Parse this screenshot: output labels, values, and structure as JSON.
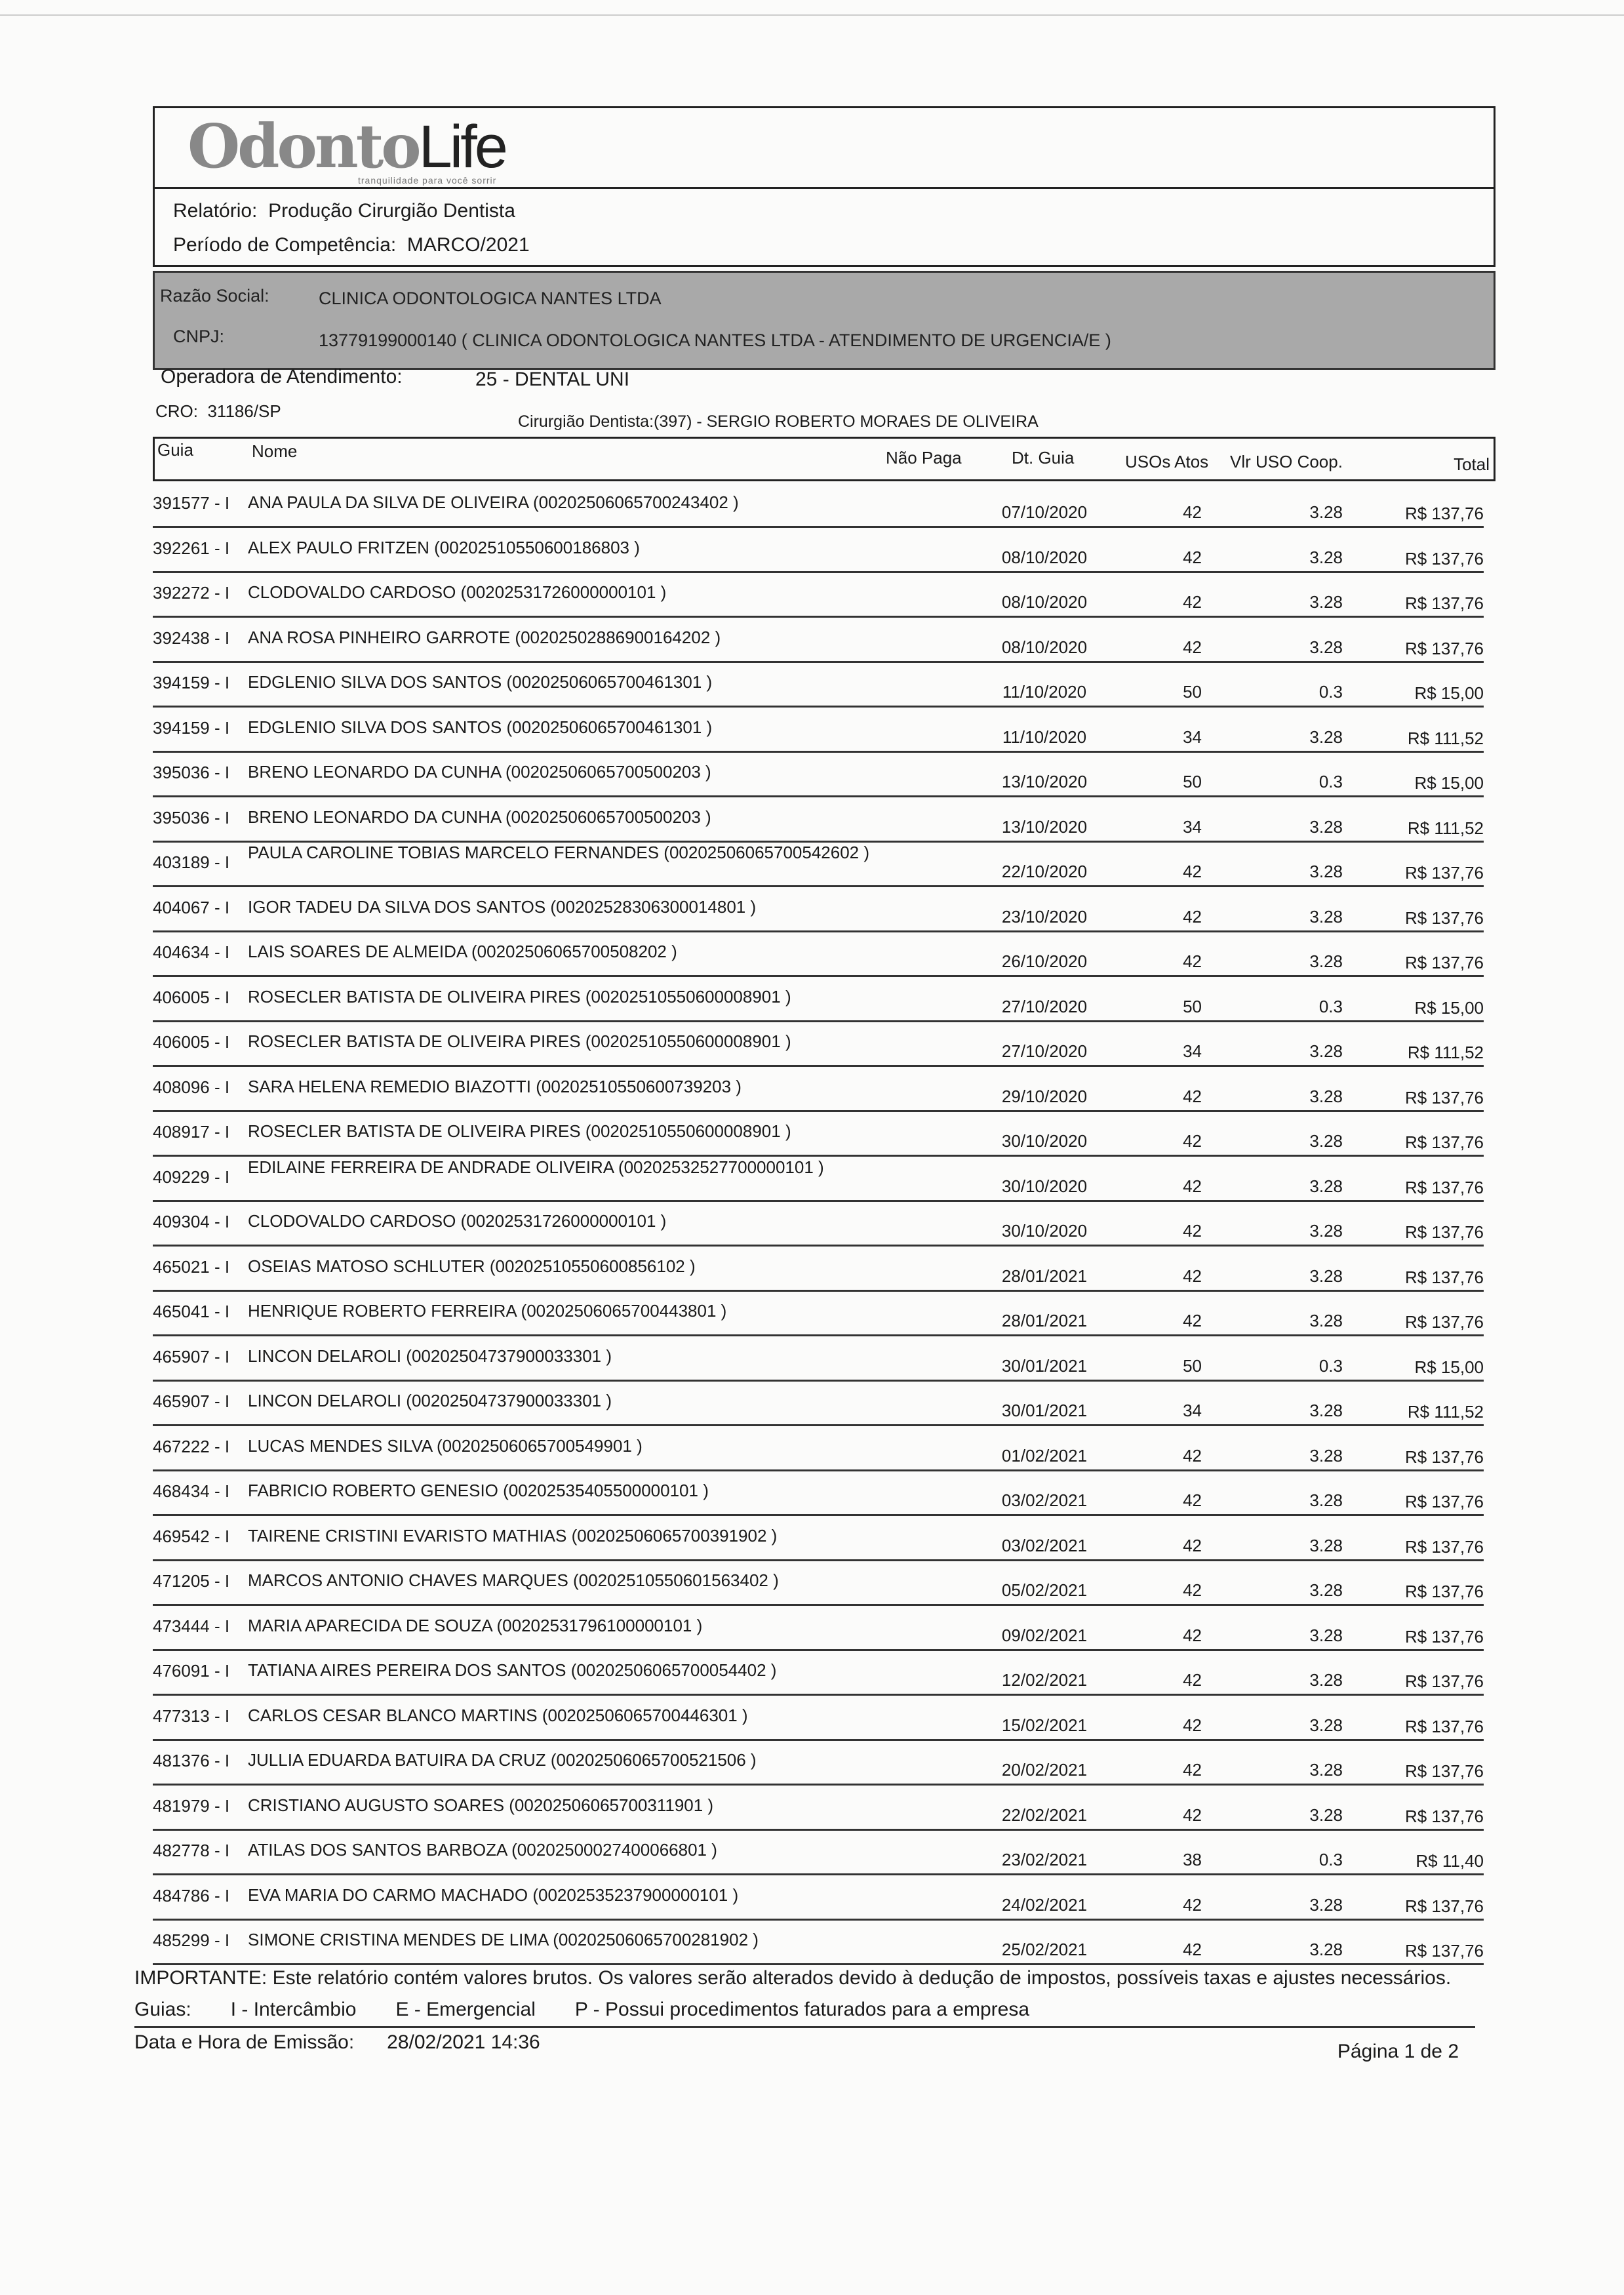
{
  "header": {
    "logo_text_a": "Odonto",
    "logo_text_b": "Life",
    "logo_tagline": "tranquilidade para você sorrir",
    "report_label": "Relatório:",
    "report_value": "Produção Cirurgião Dentista",
    "period_label": "Período de Competência:",
    "period_value": "MARCO/2021"
  },
  "company": {
    "razao_label": "Razão Social:",
    "razao_value": "CLINICA ODONTOLOGICA NANTES LTDA",
    "cnpj_label": "CNPJ:",
    "cnpj_value": "13779199000140 ( CLINICA ODONTOLOGICA NANTES LTDA - ATENDIMENTO DE URGENCIA/E )"
  },
  "operadora": {
    "label": "Operadora de Atendimento:",
    "value": "25 - DENTAL UNI"
  },
  "cro": {
    "label": "CRO:",
    "value": "31186/SP"
  },
  "dentista": {
    "label": "Cirurgião Dentista:",
    "value": "(397) - SERGIO ROBERTO MORAES DE OLIVEIRA"
  },
  "table": {
    "columns": {
      "guia": "Guia",
      "nome": "Nome",
      "nao_paga": "Não Paga",
      "dt_guia": "Dt. Guia",
      "usos": "USOs Atos",
      "vlr": "Vlr USO Coop.",
      "total": "Total"
    },
    "rows": [
      [
        "391577 - I",
        "ANA PAULA DA SILVA DE OLIVEIRA (00202506065700243402 )",
        "07/10/2020",
        "42",
        "3.28",
        "R$ 137,76"
      ],
      [
        "392261 - I",
        "ALEX PAULO FRITZEN (00202510550600186803 )",
        "08/10/2020",
        "42",
        "3.28",
        "R$ 137,76"
      ],
      [
        "392272 - I",
        "CLODOVALDO CARDOSO (00202531726000000101 )",
        "08/10/2020",
        "42",
        "3.28",
        "R$ 137,76"
      ],
      [
        "392438 - I",
        "ANA ROSA PINHEIRO GARROTE (00202502886900164202 )",
        "08/10/2020",
        "42",
        "3.28",
        "R$ 137,76"
      ],
      [
        "394159 - I",
        "EDGLENIO SILVA DOS SANTOS (00202506065700461301 )",
        "11/10/2020",
        "50",
        "0.3",
        "R$ 15,00"
      ],
      [
        "394159 - I",
        "EDGLENIO SILVA DOS SANTOS (00202506065700461301 )",
        "11/10/2020",
        "34",
        "3.28",
        "R$ 111,52"
      ],
      [
        "395036 - I",
        "BRENO LEONARDO DA CUNHA (00202506065700500203 )",
        "13/10/2020",
        "50",
        "0.3",
        "R$ 15,00"
      ],
      [
        "395036 - I",
        "BRENO LEONARDO DA CUNHA (00202506065700500203 )",
        "13/10/2020",
        "34",
        "3.28",
        "R$ 111,52"
      ],
      [
        "403189 - I",
        "PAULA CAROLINE TOBIAS MARCELO FERNANDES (00202506065700542602 )",
        "22/10/2020",
        "42",
        "3.28",
        "R$ 137,76"
      ],
      [
        "404067 - I",
        "IGOR TADEU DA SILVA DOS SANTOS (00202528306300014801 )",
        "23/10/2020",
        "42",
        "3.28",
        "R$ 137,76"
      ],
      [
        "404634 - I",
        "LAIS SOARES DE ALMEIDA (00202506065700508202 )",
        "26/10/2020",
        "42",
        "3.28",
        "R$ 137,76"
      ],
      [
        "406005 - I",
        "ROSECLER BATISTA DE OLIVEIRA PIRES (00202510550600008901 )",
        "27/10/2020",
        "50",
        "0.3",
        "R$ 15,00"
      ],
      [
        "406005 - I",
        "ROSECLER BATISTA DE OLIVEIRA PIRES (00202510550600008901 )",
        "27/10/2020",
        "34",
        "3.28",
        "R$ 111,52"
      ],
      [
        "408096 - I",
        "SARA HELENA REMEDIO BIAZOTTI (00202510550600739203 )",
        "29/10/2020",
        "42",
        "3.28",
        "R$ 137,76"
      ],
      [
        "408917 - I",
        "ROSECLER BATISTA DE OLIVEIRA PIRES (00202510550600008901 )",
        "30/10/2020",
        "42",
        "3.28",
        "R$ 137,76"
      ],
      [
        "409229 - I",
        "EDILAINE FERREIRA DE ANDRADE OLIVEIRA (00202532527700000101 )",
        "30/10/2020",
        "42",
        "3.28",
        "R$ 137,76"
      ],
      [
        "409304 - I",
        "CLODOVALDO CARDOSO (00202531726000000101 )",
        "30/10/2020",
        "42",
        "3.28",
        "R$ 137,76"
      ],
      [
        "465021 - I",
        "OSEIAS MATOSO SCHLUTER (00202510550600856102 )",
        "28/01/2021",
        "42",
        "3.28",
        "R$ 137,76"
      ],
      [
        "465041 - I",
        "HENRIQUE ROBERTO FERREIRA (00202506065700443801 )",
        "28/01/2021",
        "42",
        "3.28",
        "R$ 137,76"
      ],
      [
        "465907 - I",
        "LINCON DELAROLI (00202504737900033301 )",
        "30/01/2021",
        "50",
        "0.3",
        "R$ 15,00"
      ],
      [
        "465907 - I",
        "LINCON DELAROLI (00202504737900033301 )",
        "30/01/2021",
        "34",
        "3.28",
        "R$ 111,52"
      ],
      [
        "467222 - I",
        "LUCAS MENDES SILVA (00202506065700549901 )",
        "01/02/2021",
        "42",
        "3.28",
        "R$ 137,76"
      ],
      [
        "468434 - I",
        "FABRICIO ROBERTO GENESIO (00202535405500000101 )",
        "03/02/2021",
        "42",
        "3.28",
        "R$ 137,76"
      ],
      [
        "469542 - I",
        "TAIRENE CRISTINI EVARISTO MATHIAS (00202506065700391902 )",
        "03/02/2021",
        "42",
        "3.28",
        "R$ 137,76"
      ],
      [
        "471205 - I",
        "MARCOS ANTONIO CHAVES MARQUES (00202510550601563402 )",
        "05/02/2021",
        "42",
        "3.28",
        "R$ 137,76"
      ],
      [
        "473444 - I",
        "MARIA APARECIDA DE SOUZA (00202531796100000101 )",
        "09/02/2021",
        "42",
        "3.28",
        "R$ 137,76"
      ],
      [
        "476091 - I",
        "TATIANA AIRES PEREIRA DOS SANTOS (00202506065700054402 )",
        "12/02/2021",
        "42",
        "3.28",
        "R$ 137,76"
      ],
      [
        "477313 - I",
        "CARLOS CESAR BLANCO MARTINS (00202506065700446301 )",
        "15/02/2021",
        "42",
        "3.28",
        "R$ 137,76"
      ],
      [
        "481376 - I",
        "JULLIA EDUARDA BATUIRA DA CRUZ (00202506065700521506 )",
        "20/02/2021",
        "42",
        "3.28",
        "R$ 137,76"
      ],
      [
        "481979 - I",
        "CRISTIANO AUGUSTO SOARES (00202506065700311901 )",
        "22/02/2021",
        "42",
        "3.28",
        "R$ 137,76"
      ],
      [
        "482778 - I",
        "ATILAS DOS SANTOS BARBOZA (00202500027400066801 )",
        "23/02/2021",
        "38",
        "0.3",
        "R$ 11,40"
      ],
      [
        "484786 - I",
        "EVA MARIA DO CARMO MACHADO (00202535237900000101 )",
        "24/02/2021",
        "42",
        "3.28",
        "R$ 137,76"
      ],
      [
        "485299 - I",
        "SIMONE CRISTINA MENDES DE LIMA (00202506065700281902 )",
        "25/02/2021",
        "42",
        "3.28",
        "R$ 137,76"
      ]
    ]
  },
  "footer": {
    "important": "IMPORTANTE: Este relatório contém valores brutos. Os valores serão alterados devido à dedução de impostos, possíveis taxas e ajustes necessários.",
    "guias_label": "Guias:",
    "legend_i": "I - Intercâmbio",
    "legend_e": "E - Emergencial",
    "legend_p": "P - Possui procedimentos faturados para a empresa",
    "emissao_label": "Data e Hora de Emissão:",
    "emissao_value": "28/02/2021  14:36",
    "page": "Página 1 de 2"
  }
}
